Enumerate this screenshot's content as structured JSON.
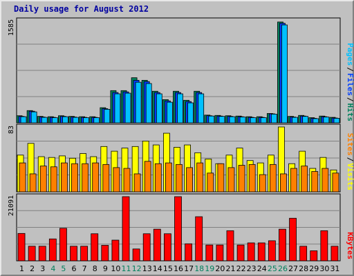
{
  "title": "Daily usage for August 2012",
  "colors": {
    "background": "#c0c0c0",
    "title": "#0000a0",
    "hits": "#00805c",
    "files": "#0040ff",
    "pages": "#00c0ff",
    "visits": "#ffff00",
    "sites": "#ff8000",
    "kbytes": "#ff0000",
    "weekend_label": "#00805c",
    "weekday_label": "#000000"
  },
  "chart_data": [
    {
      "type": "bar",
      "title": "Daily usage for August 2012",
      "axis_max_label": "1585",
      "ylim": [
        0,
        1585
      ],
      "grid": true,
      "legend": "right, vertical",
      "legend_items": [
        "Pages",
        "/",
        "Files",
        "/",
        "Hits"
      ],
      "categories": [
        "1",
        "2",
        "3",
        "4",
        "5",
        "6",
        "7",
        "8",
        "9",
        "10",
        "11",
        "12",
        "13",
        "14",
        "15",
        "16",
        "17",
        "18",
        "19",
        "20",
        "21",
        "22",
        "23",
        "24",
        "25",
        "26",
        "27",
        "28",
        "29",
        "30",
        "31"
      ],
      "weekend_days": [
        "4",
        "5",
        "11",
        "12",
        "18",
        "19",
        "25",
        "26"
      ],
      "series": [
        {
          "name": "Hits",
          "values": [
            110,
            190,
            100,
            95,
            110,
            100,
            95,
            95,
            235,
            500,
            500,
            700,
            660,
            490,
            360,
            490,
            350,
            490,
            120,
            115,
            110,
            105,
            95,
            95,
            145,
            1565,
            100,
            115,
            80,
            105,
            85
          ]
        },
        {
          "name": "Files",
          "values": [
            100,
            180,
            90,
            85,
            100,
            90,
            85,
            85,
            220,
            470,
            480,
            660,
            640,
            470,
            340,
            470,
            330,
            470,
            110,
            105,
            100,
            95,
            85,
            85,
            140,
            1545,
            90,
            105,
            70,
            95,
            75
          ]
        },
        {
          "name": "Pages",
          "values": [
            95,
            170,
            85,
            80,
            95,
            85,
            80,
            80,
            210,
            450,
            460,
            630,
            610,
            450,
            320,
            450,
            310,
            450,
            105,
            100,
            95,
            90,
            80,
            80,
            135,
            1520,
            85,
            100,
            65,
            90,
            70
          ]
        }
      ]
    },
    {
      "type": "bar",
      "axis_max_label": "83",
      "ylim": [
        0,
        83
      ],
      "grid": true,
      "legend": "right, vertical",
      "legend_items": [
        "Sites",
        "/",
        "Visits"
      ],
      "categories": [
        "1",
        "2",
        "3",
        "4",
        "5",
        "6",
        "7",
        "8",
        "9",
        "10",
        "11",
        "12",
        "13",
        "14",
        "15",
        "16",
        "17",
        "18",
        "19",
        "20",
        "21",
        "22",
        "23",
        "24",
        "25",
        "26",
        "27",
        "28",
        "29",
        "30",
        "31"
      ],
      "series": [
        {
          "name": "Visits",
          "values": [
            47,
            62,
            45,
            44,
            46,
            43,
            49,
            45,
            58,
            52,
            56,
            58,
            65,
            60,
            75,
            57,
            60,
            50,
            42,
            36,
            47,
            56,
            40,
            37,
            47,
            83,
            36,
            52,
            30,
            44,
            28
          ]
        },
        {
          "name": "Sites",
          "values": [
            37,
            23,
            33,
            32,
            37,
            36,
            36,
            37,
            35,
            31,
            30,
            23,
            39,
            36,
            37,
            35,
            31,
            37,
            24,
            36,
            31,
            34,
            35,
            22,
            35,
            23,
            30,
            33,
            26,
            30,
            24
          ]
        }
      ]
    },
    {
      "type": "bar",
      "axis_max_label": "21091",
      "ylim": [
        0,
        21091
      ],
      "grid": true,
      "legend": "right, vertical",
      "legend_items": [
        "KBytes"
      ],
      "categories": [
        "1",
        "2",
        "3",
        "4",
        "5",
        "6",
        "7",
        "8",
        "9",
        "10",
        "11",
        "12",
        "13",
        "14",
        "15",
        "16",
        "17",
        "18",
        "19",
        "20",
        "21",
        "22",
        "23",
        "24",
        "25",
        "26",
        "27",
        "28",
        "29",
        "30",
        "31"
      ],
      "series": [
        {
          "name": "KBytes",
          "values": [
            9000,
            4800,
            4800,
            7200,
            10700,
            4800,
            4800,
            8900,
            5100,
            6800,
            21091,
            3900,
            8900,
            10400,
            8900,
            21091,
            5600,
            14500,
            5200,
            5200,
            9900,
            5200,
            5900,
            5900,
            6600,
            10400,
            14000,
            4800,
            3300,
            9900,
            4800
          ]
        }
      ]
    }
  ]
}
